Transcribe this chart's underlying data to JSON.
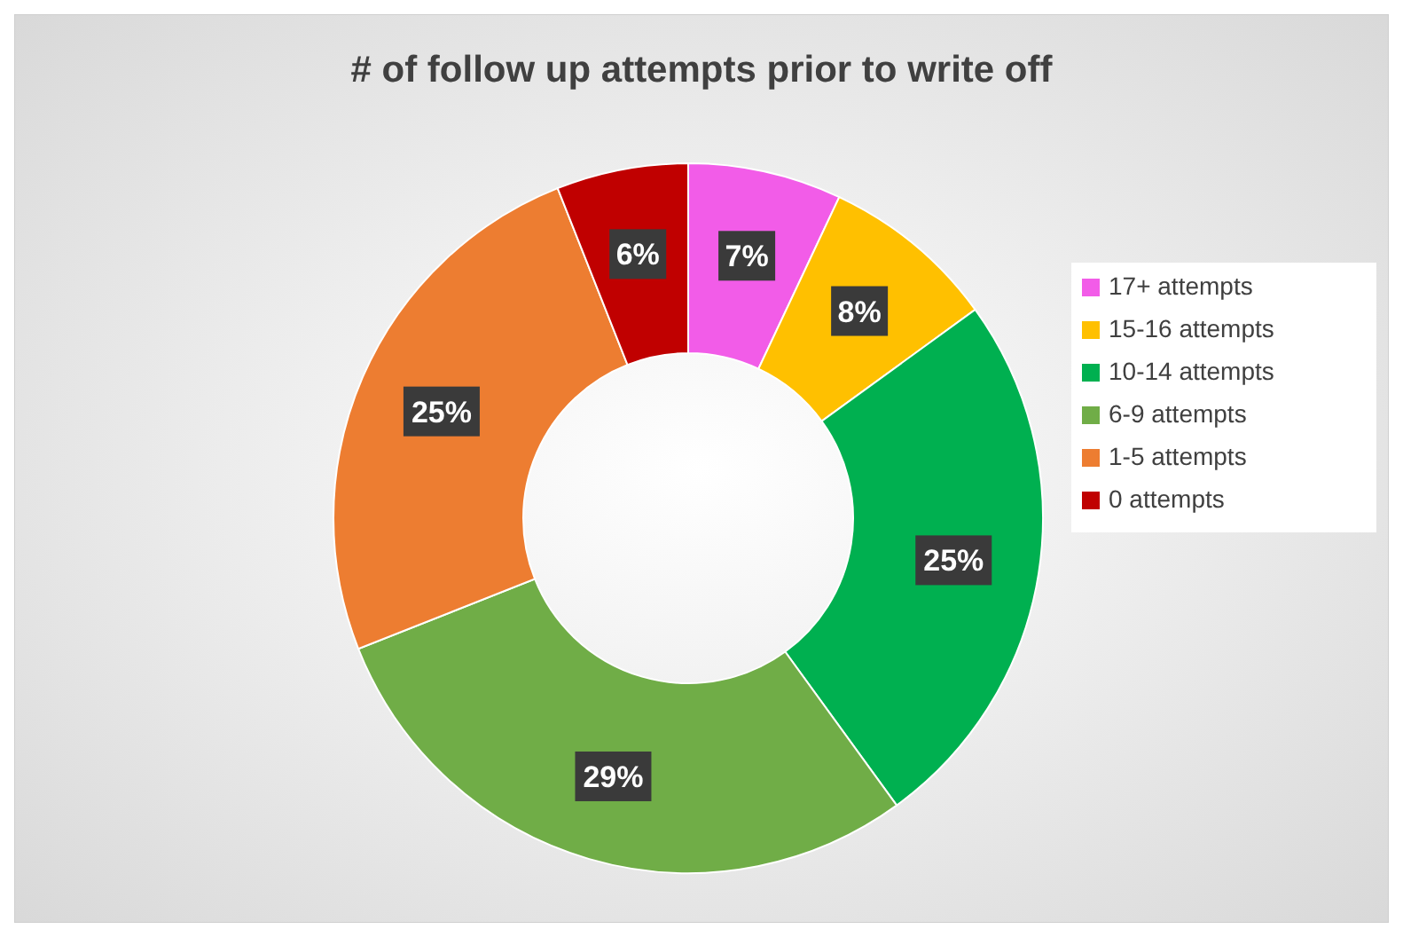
{
  "chart_data": {
    "type": "donut",
    "title": "# of follow up attempts prior to write off",
    "categories": [
      "17+ attempts",
      "15-16 attempts",
      "10-14 attempts",
      "6-9 attempts",
      "1-5 attempts",
      "0 attempts"
    ],
    "values": [
      7,
      8,
      25,
      29,
      25,
      6
    ],
    "colors": [
      "#f25ce8",
      "#ffc000",
      "#00b050",
      "#70ad47",
      "#ed7d31",
      "#c00000"
    ],
    "value_labels": [
      "7%",
      "8%",
      "25%",
      "29%",
      "25%",
      "6%"
    ],
    "legend": "right"
  }
}
